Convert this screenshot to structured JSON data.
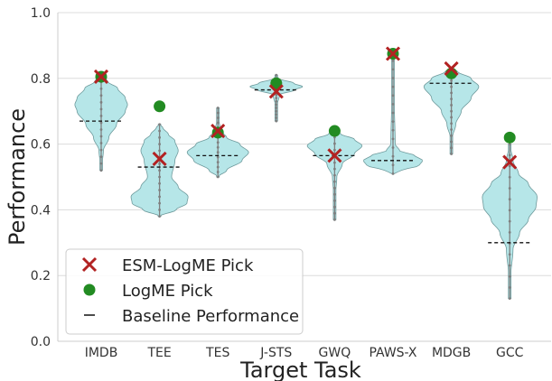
{
  "chart_data": {
    "type": "violin",
    "title": "",
    "xlabel": "Target Task",
    "ylabel": "Performance",
    "ylim": [
      0.0,
      1.0
    ],
    "yticks": [
      0.0,
      0.2,
      0.4,
      0.6,
      0.8,
      1.0
    ],
    "ytick_labels": [
      "0.0",
      "0.2",
      "0.4",
      "0.6",
      "0.8",
      "1.0"
    ],
    "grid": "y",
    "legend_position": "bottom-left",
    "colors": {
      "violin_fill": "#b6e6e8",
      "violin_edge": "#6e9a9c",
      "violin_center": "#7f7f7f",
      "esm_pick": "#b22222",
      "logme_pick": "#228b22",
      "baseline": "#111111"
    },
    "legend": [
      {
        "key": "esm",
        "label": "ESM-LogME Pick"
      },
      {
        "key": "logme",
        "label": "LogME Pick"
      },
      {
        "key": "baseline",
        "label": "Baseline Performance"
      }
    ],
    "categories": [
      "IMDB",
      "TEE",
      "TES",
      "J-STS",
      "GWQ",
      "PAWS-X",
      "MDGB",
      "GCC"
    ],
    "tasks": [
      {
        "name": "IMDB",
        "min": 0.52,
        "max": 0.81,
        "esm_pick": 0.805,
        "logme_pick": 0.805,
        "baseline": 0.67,
        "shape": [
          [
            0.52,
            0.0
          ],
          [
            0.58,
            0.02
          ],
          [
            0.62,
            0.07
          ],
          [
            0.66,
            0.14
          ],
          [
            0.7,
            0.22
          ],
          [
            0.72,
            0.24
          ],
          [
            0.74,
            0.22
          ],
          [
            0.77,
            0.15
          ],
          [
            0.79,
            0.06
          ],
          [
            0.81,
            0.0
          ]
        ]
      },
      {
        "name": "TEE",
        "min": 0.38,
        "max": 0.66,
        "esm_pick": 0.555,
        "logme_pick": 0.715,
        "baseline": 0.53,
        "shape": [
          [
            0.38,
            0.0
          ],
          [
            0.4,
            0.15
          ],
          [
            0.42,
            0.25
          ],
          [
            0.44,
            0.26
          ],
          [
            0.47,
            0.17
          ],
          [
            0.5,
            0.11
          ],
          [
            0.55,
            0.14
          ],
          [
            0.58,
            0.17
          ],
          [
            0.61,
            0.14
          ],
          [
            0.63,
            0.08
          ],
          [
            0.65,
            0.03
          ],
          [
            0.66,
            0.0
          ]
        ]
      },
      {
        "name": "TES",
        "min": 0.5,
        "max": 0.71,
        "esm_pick": 0.64,
        "logme_pick": 0.635,
        "baseline": 0.565,
        "shape": [
          [
            0.5,
            0.0
          ],
          [
            0.52,
            0.08
          ],
          [
            0.55,
            0.22
          ],
          [
            0.575,
            0.28
          ],
          [
            0.6,
            0.2
          ],
          [
            0.62,
            0.08
          ],
          [
            0.64,
            0.03
          ],
          [
            0.67,
            0.01
          ],
          [
            0.71,
            0.0
          ]
        ]
      },
      {
        "name": "J-STS",
        "min": 0.67,
        "max": 0.81,
        "esm_pick": 0.76,
        "logme_pick": 0.785,
        "baseline": 0.765,
        "shape": [
          [
            0.67,
            0.0
          ],
          [
            0.72,
            0.01
          ],
          [
            0.75,
            0.03
          ],
          [
            0.765,
            0.17
          ],
          [
            0.775,
            0.24
          ],
          [
            0.785,
            0.16
          ],
          [
            0.8,
            0.02
          ],
          [
            0.81,
            0.0
          ]
        ]
      },
      {
        "name": "GWQ",
        "min": 0.37,
        "max": 0.64,
        "esm_pick": 0.565,
        "logme_pick": 0.64,
        "baseline": 0.565,
        "shape": [
          [
            0.37,
            0.0
          ],
          [
            0.45,
            0.01
          ],
          [
            0.5,
            0.02
          ],
          [
            0.54,
            0.07
          ],
          [
            0.57,
            0.18
          ],
          [
            0.595,
            0.25
          ],
          [
            0.615,
            0.18
          ],
          [
            0.63,
            0.06
          ],
          [
            0.64,
            0.0
          ]
        ]
      },
      {
        "name": "PAWS-X",
        "min": 0.51,
        "max": 0.88,
        "esm_pick": 0.875,
        "logme_pick": 0.875,
        "baseline": 0.55,
        "shape": [
          [
            0.51,
            0.0
          ],
          [
            0.52,
            0.08
          ],
          [
            0.535,
            0.24
          ],
          [
            0.55,
            0.27
          ],
          [
            0.565,
            0.2
          ],
          [
            0.58,
            0.06
          ],
          [
            0.6,
            0.02
          ],
          [
            0.75,
            0.01
          ],
          [
            0.88,
            0.0
          ]
        ]
      },
      {
        "name": "MDGB",
        "min": 0.57,
        "max": 0.83,
        "esm_pick": 0.83,
        "logme_pick": 0.815,
        "baseline": 0.785,
        "shape": [
          [
            0.57,
            0.0
          ],
          [
            0.62,
            0.01
          ],
          [
            0.66,
            0.04
          ],
          [
            0.7,
            0.09
          ],
          [
            0.74,
            0.18
          ],
          [
            0.775,
            0.25
          ],
          [
            0.8,
            0.18
          ],
          [
            0.82,
            0.06
          ],
          [
            0.83,
            0.0
          ]
        ]
      },
      {
        "name": "GCC",
        "min": 0.13,
        "max": 0.6,
        "esm_pick": 0.545,
        "logme_pick": 0.62,
        "baseline": 0.3,
        "shape": [
          [
            0.13,
            0.0
          ],
          [
            0.2,
            0.01
          ],
          [
            0.28,
            0.03
          ],
          [
            0.33,
            0.09
          ],
          [
            0.37,
            0.17
          ],
          [
            0.41,
            0.24
          ],
          [
            0.44,
            0.25
          ],
          [
            0.48,
            0.17
          ],
          [
            0.51,
            0.08
          ],
          [
            0.55,
            0.03
          ],
          [
            0.6,
            0.0
          ]
        ]
      }
    ]
  }
}
